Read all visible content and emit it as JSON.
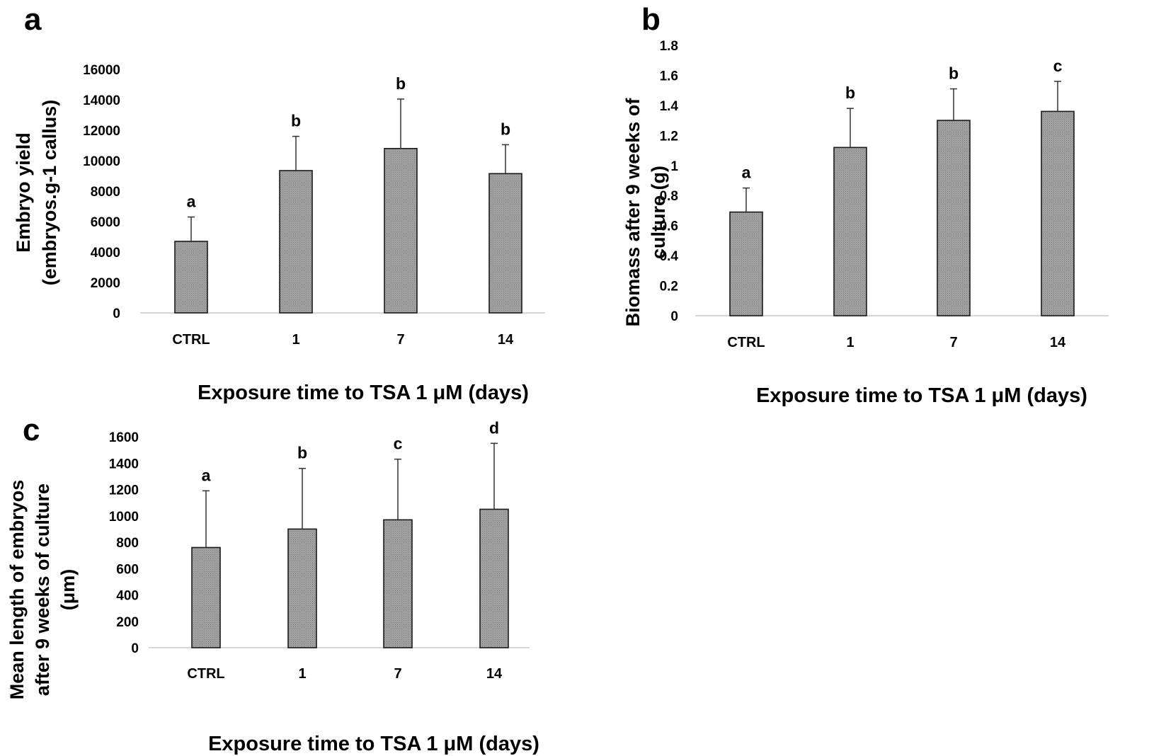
{
  "chart_data": [
    {
      "type": "bar",
      "panel": "a",
      "categories": [
        "CTRL",
        "1",
        "7",
        "14"
      ],
      "values": [
        4700,
        9350,
        10800,
        9150
      ],
      "error": [
        1600,
        2250,
        3250,
        1900
      ],
      "significance": [
        "a",
        "b",
        "b",
        "b"
      ],
      "xlabel": "Exposure time to TSA 1 μM (days)",
      "ylabel_lines": [
        "Embryo yield",
        "(embryos.g-1 callus)"
      ],
      "ylim": [
        0,
        16000
      ],
      "yticks": [
        "0",
        "2000",
        "4000",
        "6000",
        "8000",
        "10000",
        "12000",
        "14000",
        "16000"
      ]
    },
    {
      "type": "bar",
      "panel": "b",
      "categories": [
        "CTRL",
        "1",
        "7",
        "14"
      ],
      "values": [
        0.69,
        1.12,
        1.3,
        1.36
      ],
      "error": [
        0.16,
        0.26,
        0.21,
        0.2
      ],
      "significance": [
        "a",
        "b",
        "b",
        "c"
      ],
      "xlabel": "Exposure time to TSA 1 μM (days)",
      "ylabel_lines": [
        "Biomass after 9 weeks of",
        "culture (g)"
      ],
      "ylim": [
        0,
        1.8
      ],
      "yticks": [
        "0",
        "0.2",
        "0.4",
        "0.6",
        "0.8",
        "1",
        "1.2",
        "1.4",
        "1.6",
        "1.8"
      ]
    },
    {
      "type": "bar",
      "panel": "c",
      "categories": [
        "CTRL",
        "1",
        "7",
        "14"
      ],
      "values": [
        760,
        900,
        970,
        1050
      ],
      "error": [
        430,
        460,
        460,
        500
      ],
      "significance": [
        "a",
        "b",
        "c",
        "d"
      ],
      "xlabel": "Exposure time to TSA 1 μM (days)",
      "ylabel_lines": [
        "Mean length of embryos",
        "after 9 weeks of culture",
        "(μm)"
      ],
      "ylim": [
        0,
        1600
      ],
      "yticks": [
        "0",
        "200",
        "400",
        "600",
        "800",
        "1000",
        "1200",
        "1400",
        "1600"
      ]
    }
  ],
  "colors": {
    "bar_fill": "#9a9a9a",
    "bar_stroke": "#1a1a1a",
    "axis": "#c8c8c8",
    "error": "#333333",
    "text": "#000000"
  }
}
